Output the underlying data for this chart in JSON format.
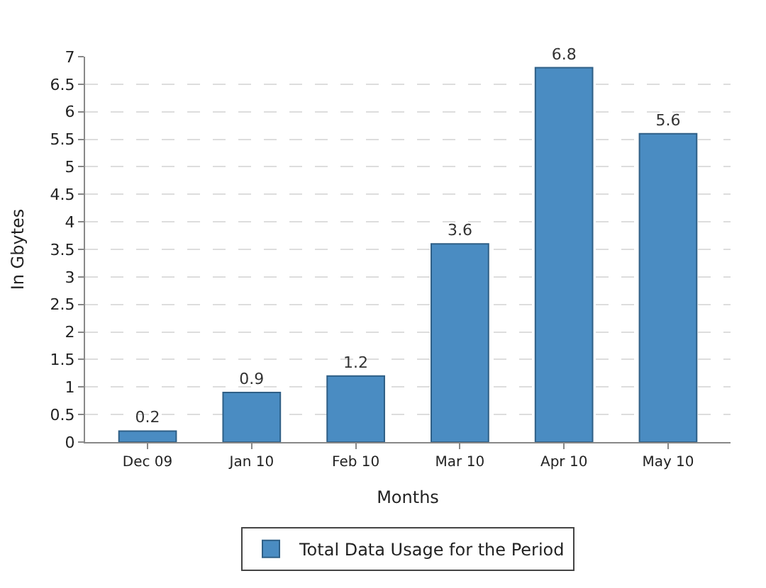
{
  "chart_data": {
    "type": "bar",
    "xlabel": "Months",
    "ylabel": "In Gbytes",
    "categories": [
      "Dec 09",
      "Jan 10",
      "Feb 10",
      "Mar 10",
      "Apr 10",
      "May 10"
    ],
    "series": [
      {
        "name": "Total Data Usage for the Period",
        "color": "#4a8cc2",
        "values": [
          0.2,
          0.9,
          1.2,
          3.6,
          6.8,
          5.6
        ]
      }
    ],
    "ylim": [
      0,
      7
    ],
    "yticks": [
      0,
      0.5,
      1,
      1.5,
      2,
      2.5,
      3,
      3.5,
      4,
      4.5,
      5,
      5.5,
      6,
      6.5,
      7
    ],
    "grid": "y",
    "legend": "bottom",
    "data_labels": true
  }
}
